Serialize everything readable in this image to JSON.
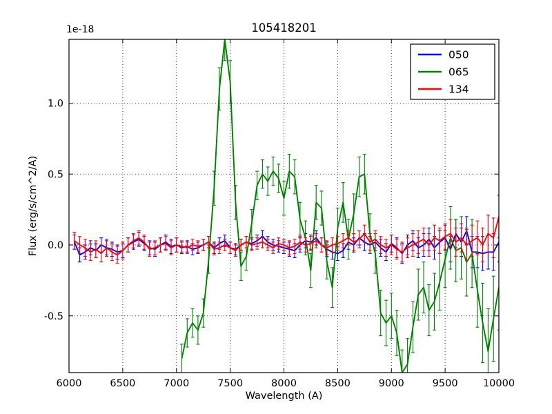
{
  "chart_data": {
    "type": "line",
    "title": "105418201",
    "xlabel": "Wavelength (A)",
    "ylabel": "Flux (erg/s/cm^2/A)",
    "offset_label": "1e-18",
    "xlim": [
      6000,
      10000
    ],
    "ylim": [
      -0.9,
      1.45
    ],
    "xticks": [
      6000,
      6500,
      7000,
      7500,
      8000,
      8500,
      9000,
      9500,
      10000
    ],
    "xtick_labels": [
      "6000",
      "6500",
      "7000",
      "7500",
      "8000",
      "8500",
      "9000",
      "9500",
      "10000"
    ],
    "yticks": [
      -0.5,
      0.0,
      0.5,
      1.0
    ],
    "ytick_labels": [
      "-0.5",
      "0.0",
      "0.5",
      "1.0"
    ],
    "grid": true,
    "legend": {
      "position": "top-right",
      "entries": [
        {
          "label": "050",
          "color": "#0000ff"
        },
        {
          "label": "065",
          "color": "#008000"
        },
        {
          "label": "134",
          "color": "#ff0000"
        }
      ]
    },
    "series": [
      {
        "name": "050",
        "color": "#0000ff",
        "x": [
          6050,
          6100,
          6150,
          6200,
          6250,
          6300,
          6350,
          6400,
          6450,
          6500,
          6550,
          6600,
          6650,
          6700,
          6750,
          6800,
          6850,
          6900,
          6950,
          7000,
          7050,
          7100,
          7150,
          7200,
          7250,
          7300,
          7350,
          7400,
          7450,
          7500,
          7550,
          7600,
          7650,
          7700,
          7750,
          7800,
          7850,
          7900,
          7950,
          8000,
          8050,
          8100,
          8150,
          8200,
          8250,
          8300,
          8350,
          8400,
          8450,
          8500,
          8550,
          8600,
          8650,
          8700,
          8750,
          8800,
          8850,
          8900,
          8950,
          9000,
          9050,
          9100,
          9150,
          9200,
          9250,
          9300,
          9350,
          9400,
          9450,
          9500,
          9550,
          9600,
          9650,
          9700,
          9750,
          9800,
          9850,
          9900,
          9950,
          10000
        ],
        "y": [
          0.02,
          -0.07,
          -0.05,
          -0.02,
          -0.04,
          0.0,
          -0.02,
          -0.03,
          -0.05,
          -0.04,
          0.0,
          0.02,
          0.04,
          0.01,
          -0.02,
          -0.03,
          0.0,
          0.02,
          -0.01,
          0.0,
          -0.02,
          -0.01,
          -0.03,
          -0.02,
          0.0,
          0.02,
          -0.02,
          0.01,
          0.03,
          -0.02,
          -0.03,
          0.0,
          0.02,
          0.01,
          0.03,
          0.06,
          0.02,
          0.0,
          -0.01,
          -0.02,
          -0.03,
          -0.04,
          0.0,
          0.03,
          0.02,
          0.05,
          0.0,
          -0.03,
          -0.05,
          -0.06,
          -0.04,
          0.02,
          0.0,
          0.05,
          0.02,
          0.0,
          0.02,
          -0.02,
          -0.05,
          0.01,
          -0.02,
          -0.06,
          0.0,
          0.03,
          -0.02,
          0.0,
          0.04,
          -0.02,
          0.02,
          0.05,
          -0.03,
          0.08,
          0.02,
          0.1,
          -0.05,
          -0.05,
          -0.06,
          -0.05,
          -0.05,
          0.02
        ],
        "yerr": [
          0.05,
          0.05,
          0.05,
          0.05,
          0.05,
          0.05,
          0.05,
          0.05,
          0.05,
          0.05,
          0.05,
          0.05,
          0.05,
          0.05,
          0.05,
          0.05,
          0.05,
          0.05,
          0.05,
          0.05,
          0.04,
          0.04,
          0.04,
          0.04,
          0.04,
          0.04,
          0.04,
          0.04,
          0.04,
          0.04,
          0.04,
          0.04,
          0.04,
          0.04,
          0.04,
          0.04,
          0.04,
          0.04,
          0.04,
          0.04,
          0.05,
          0.05,
          0.05,
          0.05,
          0.05,
          0.05,
          0.05,
          0.05,
          0.05,
          0.05,
          0.05,
          0.05,
          0.05,
          0.05,
          0.06,
          0.06,
          0.06,
          0.06,
          0.06,
          0.06,
          0.07,
          0.07,
          0.07,
          0.07,
          0.07,
          0.08,
          0.08,
          0.08,
          0.08,
          0.09,
          0.09,
          0.1,
          0.1,
          0.1,
          0.11,
          0.11,
          0.12,
          0.12,
          0.13,
          0.14
        ]
      },
      {
        "name": "065",
        "color": "#008000",
        "x": [
          7050,
          7100,
          7150,
          7200,
          7250,
          7300,
          7350,
          7400,
          7450,
          7500,
          7550,
          7600,
          7650,
          7700,
          7750,
          7800,
          7850,
          7900,
          7950,
          8000,
          8050,
          8100,
          8150,
          8200,
          8250,
          8300,
          8350,
          8400,
          8450,
          8500,
          8550,
          8600,
          8650,
          8700,
          8750,
          8800,
          8850,
          8900,
          8950,
          9000,
          9050,
          9100,
          9150,
          9200,
          9250,
          9300,
          9350,
          9400,
          9450,
          9500,
          9550,
          9600,
          9650,
          9700,
          9750,
          9800,
          9850,
          9900,
          9950,
          10000
        ],
        "y": [
          -0.8,
          -0.62,
          -0.55,
          -0.6,
          -0.48,
          -0.1,
          0.4,
          1.1,
          1.45,
          1.15,
          0.3,
          -0.15,
          -0.08,
          0.15,
          0.42,
          0.5,
          0.45,
          0.52,
          0.47,
          0.33,
          0.52,
          0.48,
          0.18,
          0.05,
          -0.18,
          0.3,
          0.26,
          -0.12,
          -0.3,
          0.12,
          0.3,
          0.04,
          0.22,
          0.48,
          0.5,
          0.08,
          -0.06,
          -0.48,
          -0.55,
          -0.5,
          -0.62,
          -0.9,
          -0.84,
          -0.58,
          -0.35,
          -0.3,
          -0.46,
          -0.4,
          -0.26,
          -0.1,
          0.05,
          -0.04,
          -0.02,
          -0.12,
          -0.06,
          -0.32,
          -0.55,
          -0.75,
          -0.52,
          -0.3
        ],
        "yerr": [
          0.1,
          0.1,
          0.1,
          0.1,
          0.1,
          0.1,
          0.12,
          0.15,
          0.15,
          0.15,
          0.12,
          0.1,
          0.1,
          0.1,
          0.1,
          0.1,
          0.1,
          0.1,
          0.1,
          0.12,
          0.12,
          0.12,
          0.12,
          0.12,
          0.12,
          0.12,
          0.12,
          0.12,
          0.14,
          0.14,
          0.14,
          0.14,
          0.14,
          0.14,
          0.14,
          0.14,
          0.14,
          0.16,
          0.16,
          0.16,
          0.16,
          0.16,
          0.18,
          0.18,
          0.18,
          0.18,
          0.18,
          0.2,
          0.2,
          0.2,
          0.22,
          0.22,
          0.22,
          0.24,
          0.24,
          0.26,
          0.28,
          0.3,
          0.3,
          0.3
        ]
      },
      {
        "name": "134",
        "color": "#ff0000",
        "x": [
          6050,
          6100,
          6150,
          6200,
          6250,
          6300,
          6350,
          6400,
          6450,
          6500,
          6550,
          6600,
          6650,
          6700,
          6750,
          6800,
          6850,
          6900,
          6950,
          7000,
          7050,
          7100,
          7150,
          7200,
          7250,
          7300,
          7350,
          7400,
          7450,
          7500,
          7550,
          7600,
          7650,
          7700,
          7750,
          7800,
          7850,
          7900,
          7950,
          8000,
          8050,
          8100,
          8150,
          8200,
          8250,
          8300,
          8350,
          8400,
          8450,
          8500,
          8550,
          8600,
          8650,
          8700,
          8750,
          8800,
          8850,
          8900,
          8950,
          9000,
          9050,
          9100,
          9150,
          9200,
          9250,
          9300,
          9350,
          9400,
          9450,
          9500,
          9550,
          9600,
          9650,
          9700,
          9750,
          9800,
          9850,
          9900,
          9950,
          10000
        ],
        "y": [
          0.03,
          0.0,
          -0.02,
          -0.05,
          -0.03,
          -0.06,
          -0.02,
          -0.05,
          -0.07,
          -0.04,
          0.0,
          0.03,
          0.05,
          0.02,
          -0.03,
          -0.02,
          0.0,
          0.01,
          -0.02,
          0.0,
          -0.01,
          -0.02,
          0.0,
          -0.01,
          0.0,
          0.02,
          -0.03,
          -0.02,
          0.0,
          -0.02,
          -0.04,
          0.0,
          0.02,
          0.0,
          0.01,
          0.02,
          0.0,
          -0.02,
          0.01,
          0.0,
          -0.02,
          -0.01,
          0.02,
          0.0,
          0.01,
          0.03,
          0.0,
          -0.02,
          0.0,
          0.01,
          0.03,
          0.05,
          0.02,
          0.04,
          0.08,
          0.02,
          0.04,
          0.0,
          -0.02,
          0.0,
          -0.03,
          -0.05,
          -0.02,
          0.0,
          0.02,
          0.04,
          0.0,
          0.05,
          0.03,
          0.06,
          0.08,
          0.02,
          0.05,
          0.0,
          0.03,
          0.05,
          0.0,
          0.08,
          0.05,
          0.2
        ],
        "yerr": [
          0.06,
          0.06,
          0.06,
          0.06,
          0.06,
          0.06,
          0.06,
          0.06,
          0.06,
          0.06,
          0.05,
          0.05,
          0.05,
          0.05,
          0.05,
          0.05,
          0.05,
          0.05,
          0.05,
          0.05,
          0.04,
          0.04,
          0.04,
          0.04,
          0.04,
          0.04,
          0.04,
          0.04,
          0.04,
          0.04,
          0.04,
          0.04,
          0.04,
          0.04,
          0.04,
          0.04,
          0.04,
          0.04,
          0.04,
          0.04,
          0.05,
          0.05,
          0.05,
          0.05,
          0.05,
          0.05,
          0.05,
          0.05,
          0.05,
          0.05,
          0.05,
          0.05,
          0.06,
          0.06,
          0.06,
          0.06,
          0.06,
          0.06,
          0.06,
          0.07,
          0.07,
          0.07,
          0.07,
          0.08,
          0.08,
          0.08,
          0.08,
          0.09,
          0.09,
          0.09,
          0.1,
          0.1,
          0.1,
          0.11,
          0.11,
          0.12,
          0.12,
          0.13,
          0.14,
          0.15
        ]
      }
    ]
  }
}
